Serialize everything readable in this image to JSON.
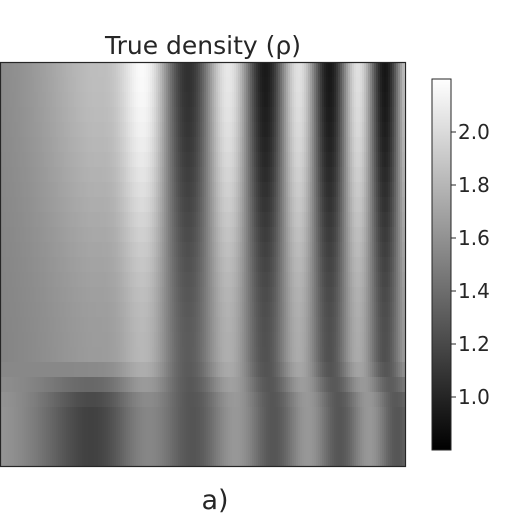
{
  "chart_data": {
    "type": "heatmap",
    "title": "True density (ρ)",
    "xlabel": "",
    "ylabel": "",
    "colormap": "gray",
    "colorbar": {
      "ticks": [
        "1.0",
        "1.2",
        "1.4",
        "1.6",
        "1.8",
        "2.0"
      ],
      "range": [
        0.8,
        2.2
      ]
    },
    "axes_ticks": "none",
    "grid": false
  },
  "caption": "a)"
}
